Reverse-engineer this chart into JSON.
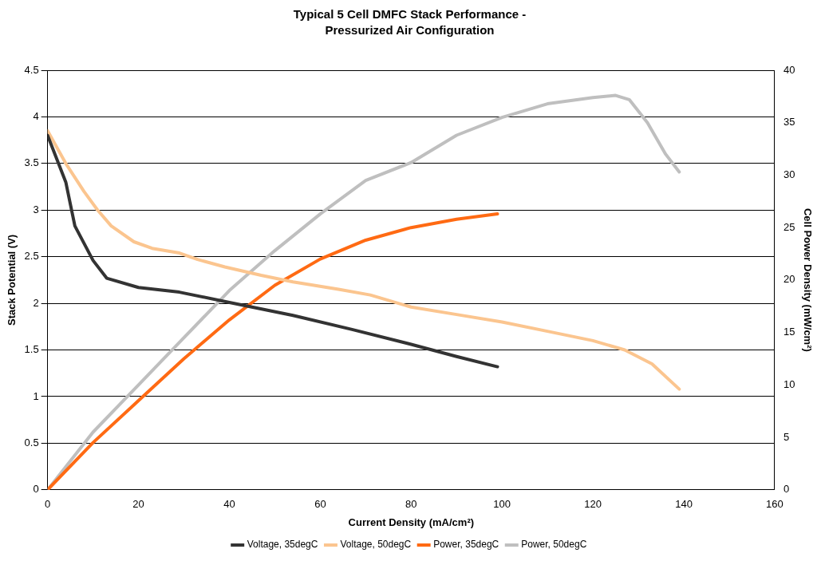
{
  "chart_data": {
    "type": "line",
    "title": "Typical 5 Cell DMFC Stack Performance -",
    "subtitle": "Pressurized Air Configuration",
    "xlabel": "Current Density (mA/cm²)",
    "ylabel": "Stack Potential (V)",
    "y2label": "Cell Power Density (mW/cm²)",
    "xlim": [
      0,
      160
    ],
    "xticks": [
      0,
      20,
      40,
      60,
      80,
      100,
      120,
      140,
      160
    ],
    "ylim": [
      0,
      4.5
    ],
    "yticks": [
      0,
      0.5,
      1,
      1.5,
      2,
      2.5,
      3,
      3.5,
      4,
      4.5
    ],
    "y2lim": [
      0,
      40
    ],
    "y2ticks": [
      0,
      5,
      10,
      15,
      20,
      25,
      30,
      35,
      40
    ],
    "grid": "y",
    "legend": "bottom",
    "marker": "none",
    "line_style": "solid",
    "series": [
      {
        "name": "Voltage, 35degC",
        "color": "#333333",
        "x": [
          0,
          4,
          6,
          10,
          13,
          20,
          29,
          40,
          54,
          67,
          80,
          90,
          99
        ],
        "values": [
          3.8,
          3.3,
          2.83,
          2.46,
          2.27,
          2.17,
          2.12,
          2.01,
          1.87,
          1.72,
          1.56,
          1.43,
          1.32
        ]
      },
      {
        "name": "Voltage, 50degC",
        "color": "#fbc58f",
        "x": [
          0,
          4,
          8,
          11,
          14,
          19,
          23,
          29,
          33,
          39,
          47,
          54,
          64,
          71,
          80,
          90,
          100,
          110,
          120,
          127,
          133,
          139
        ],
        "values": [
          3.85,
          3.5,
          3.2,
          3.0,
          2.83,
          2.66,
          2.59,
          2.54,
          2.47,
          2.39,
          2.3,
          2.23,
          2.15,
          2.09,
          1.96,
          1.88,
          1.8,
          1.7,
          1.6,
          1.5,
          1.35,
          1.08
        ]
      },
      {
        "name": "Power, 35degC",
        "color": "#ff6a13",
        "axis": "y2",
        "x": [
          0,
          10,
          20,
          30,
          40,
          50,
          60,
          70,
          80,
          90,
          99
        ],
        "values": [
          0,
          4.5,
          8.5,
          12.5,
          16.2,
          19.5,
          22,
          23.8,
          25,
          25.8,
          26.3
        ]
      },
      {
        "name": "Power, 50degC",
        "color": "#bfbfbf",
        "axis": "y2",
        "x": [
          0,
          10,
          20,
          30,
          40,
          50,
          60,
          70,
          80,
          90,
          100,
          110,
          120,
          125,
          128,
          132,
          136,
          139
        ],
        "values": [
          0,
          5.5,
          10,
          14.5,
          19,
          22.8,
          26.3,
          29.5,
          31.2,
          33.8,
          35.5,
          36.8,
          37.4,
          37.6,
          37.2,
          35,
          32,
          30.3
        ]
      }
    ]
  }
}
